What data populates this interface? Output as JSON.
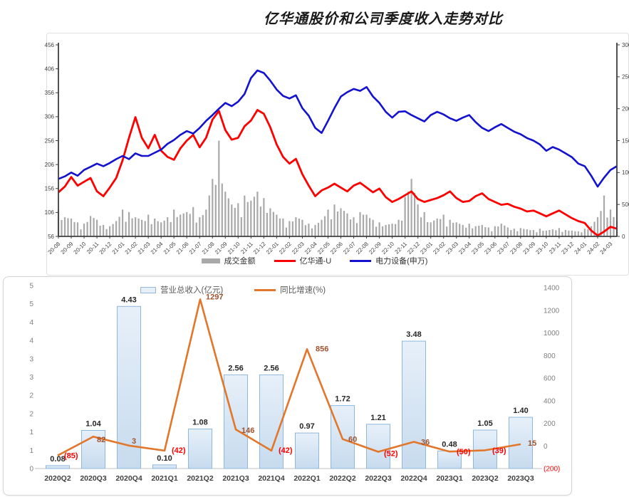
{
  "page": {
    "title": "亿华通股价和公司季度收入走势对比"
  },
  "chart_data": [
    {
      "id": "price_volume_chart",
      "type": "line",
      "title": "亿华通股价和公司季度收入走势对比",
      "x_labels": [
        "20-08",
        "20-09",
        "20-10",
        "20-11",
        "20-12",
        "21-01",
        "21-02",
        "21-03",
        "21-04",
        "21-05",
        "21-06",
        "21-07",
        "21-08",
        "21-09",
        "21-10",
        "21-11",
        "21-12",
        "22-01",
        "22-02",
        "22-03",
        "22-04",
        "22-05",
        "22-06",
        "22-07",
        "22-08",
        "22-09",
        "22-10",
        "22-11",
        "22-12",
        "23-01",
        "23-02",
        "23-03",
        "23-04",
        "23-05",
        "23-06",
        "23-07",
        "23-08",
        "23-09",
        "23-10",
        "23-11",
        "23-12",
        "24-01",
        "24-02",
        "24-03"
      ],
      "samples_per_month": 2,
      "left_axis": {
        "ticks": [
          456,
          406,
          356,
          306,
          256,
          206,
          156,
          106,
          56
        ],
        "min": 56,
        "max": 456
      },
      "right_axis": {
        "ticks": [
          3000,
          2500,
          2000,
          1500,
          1000,
          500,
          0
        ],
        "min": 0,
        "max": 3000
      },
      "legend_position": "bottom",
      "grid": false,
      "series": [
        {
          "name": "成交金额",
          "kind": "bar",
          "axis": "right",
          "color": "#a9a9a9",
          "values": [
            420,
            300,
            280,
            220,
            200,
            320,
            260,
            180,
            160,
            240,
            420,
            380,
            300,
            260,
            340,
            280,
            220,
            300,
            420,
            340,
            380,
            460,
            300,
            420,
            900,
            1500,
            700,
            500,
            520,
            640,
            560,
            700,
            600,
            440,
            340,
            280,
            240,
            300,
            260,
            200,
            180,
            260,
            420,
            500,
            440,
            360,
            300,
            380,
            340,
            260,
            220,
            180,
            200,
            260,
            620,
            900,
            500,
            380,
            220,
            280,
            340,
            260,
            220,
            180,
            200,
            160,
            180,
            140,
            160,
            200,
            140,
            120,
            130,
            110,
            100,
            120,
            90,
            110,
            130,
            100,
            90,
            80,
            120,
            160,
            300,
            640,
            420,
            240
          ]
        },
        {
          "name": "亿华通-U",
          "kind": "line",
          "axis": "left",
          "color": "#ff0000",
          "values": [
            148,
            160,
            180,
            162,
            170,
            178,
            150,
            140,
            158,
            178,
            215,
            262,
            305,
            262,
            240,
            268,
            235,
            222,
            216,
            240,
            256,
            268,
            242,
            262,
            300,
            318,
            278,
            258,
            262,
            286,
            298,
            320,
            312,
            284,
            248,
            222,
            208,
            218,
            186,
            162,
            140,
            152,
            158,
            166,
            158,
            150,
            162,
            168,
            158,
            148,
            156,
            138,
            128,
            134,
            142,
            150,
            134,
            128,
            132,
            136,
            142,
            150,
            136,
            128,
            130,
            140,
            146,
            134,
            128,
            122,
            124,
            118,
            114,
            108,
            110,
            104,
            98,
            104,
            110,
            102,
            94,
            88,
            84,
            68,
            58,
            66,
            76,
            72
          ]
        },
        {
          "name": "电力设备(申万)",
          "kind": "line",
          "axis": "right",
          "color": "#1212d0",
          "values": [
            900,
            940,
            1000,
            950,
            1040,
            1090,
            1140,
            1100,
            1150,
            1210,
            1260,
            1210,
            1300,
            1260,
            1260,
            1310,
            1360,
            1450,
            1510,
            1590,
            1650,
            1610,
            1700,
            1810,
            1900,
            2000,
            2090,
            2040,
            2110,
            2230,
            2480,
            2600,
            2560,
            2440,
            2300,
            2200,
            2160,
            2210,
            2010,
            1890,
            1700,
            1620,
            1810,
            2010,
            2190,
            2260,
            2310,
            2280,
            2340,
            2190,
            2090,
            1950,
            1860,
            1950,
            1960,
            1900,
            1850,
            1800,
            1900,
            1950,
            1910,
            1850,
            1810,
            1860,
            1900,
            1790,
            1700,
            1650,
            1710,
            1760,
            1700,
            1640,
            1600,
            1540,
            1500,
            1440,
            1340,
            1400,
            1360,
            1300,
            1240,
            1140,
            1100,
            950,
            780,
            920,
            1040,
            1100
          ]
        }
      ]
    },
    {
      "id": "revenue_growth_chart",
      "type": "bar",
      "categories": [
        "2020Q2",
        "2020Q3",
        "2020Q4",
        "2021Q1",
        "2021Q2",
        "2021Q3",
        "2021Q4",
        "2022Q1",
        "2022Q2",
        "2022Q3",
        "2022Q4",
        "2023Q1",
        "2023Q2",
        "2023Q3"
      ],
      "left_axis": {
        "tick_labels": [
          "5",
          "5",
          "4",
          "4",
          "3",
          "3",
          "2",
          "2",
          "1",
          "1",
          "0"
        ],
        "min": 0,
        "max": 5,
        "step": 0.5
      },
      "right_axis": {
        "tick_labels": [
          "1400",
          "1200",
          "1000",
          "800",
          "600",
          "400",
          "200",
          "0",
          "(200)"
        ],
        "min": -200,
        "max": 1400,
        "step": 200,
        "negative_color": "#ff0000"
      },
      "grid": false,
      "series": [
        {
          "name": "营业总收入(亿元)",
          "kind": "bar",
          "axis": "left",
          "color_fill_top": "#e7f0f9",
          "color_fill_bottom": "#c7dbee",
          "color_border": "#8fb8de",
          "label_color": "#262626",
          "values": [
            0.08,
            1.04,
            4.43,
            0.1,
            1.08,
            2.56,
            2.56,
            0.97,
            1.72,
            1.21,
            3.48,
            0.48,
            1.05,
            1.4
          ],
          "labels": [
            "0.08",
            "1.04",
            "4.43",
            "0.10",
            "1.08",
            "2.56",
            "2.56",
            "0.97",
            "1.72",
            "1.21",
            "3.48",
            "0.48",
            "1.05",
            "1.40"
          ]
        },
        {
          "name": "同比增速(%)",
          "kind": "line",
          "axis": "right",
          "color": "#e2762a",
          "label_color_positive": "#a0522d",
          "label_color_negative": "#ff0000",
          "values": [
            -85,
            82,
            3,
            -42,
            1297,
            146,
            -42,
            856,
            60,
            -52,
            36,
            -50,
            -39,
            15
          ],
          "labels": [
            "(85)",
            "82",
            "3",
            "(42)",
            "1297",
            "146",
            "(42)",
            "856",
            "60",
            "(52)",
            "36",
            "(50)",
            "(39)",
            "15"
          ]
        }
      ]
    }
  ]
}
